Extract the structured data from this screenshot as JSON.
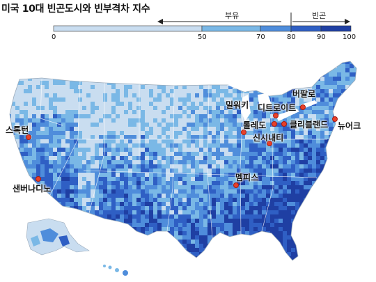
{
  "title": "미국 10대 빈곤도시와 빈부격차 지수",
  "legend": {
    "rich_label": "부유",
    "poor_label": "빈곤",
    "ticks": [
      "0",
      "50",
      "70",
      "80",
      "90",
      "100"
    ],
    "colors": [
      "#c9ddf0",
      "#7ab8e6",
      "#4f8ddb",
      "#2f5fc4",
      "#1f3fa3"
    ]
  },
  "cities": [
    {
      "name": "밀워키",
      "id": "milwaukee"
    },
    {
      "name": "버팔로",
      "id": "buffalo"
    },
    {
      "name": "디트로이트",
      "id": "detroit"
    },
    {
      "name": "톨레도",
      "id": "toledo"
    },
    {
      "name": "클리블랜드",
      "id": "cleveland"
    },
    {
      "name": "뉴어크",
      "id": "newark"
    },
    {
      "name": "신시내티",
      "id": "cincinnati"
    },
    {
      "name": "스톡턴",
      "id": "stockton"
    },
    {
      "name": "샌버나디노",
      "id": "san-bernardino"
    },
    {
      "name": "멤피스",
      "id": "memphis"
    }
  ]
}
